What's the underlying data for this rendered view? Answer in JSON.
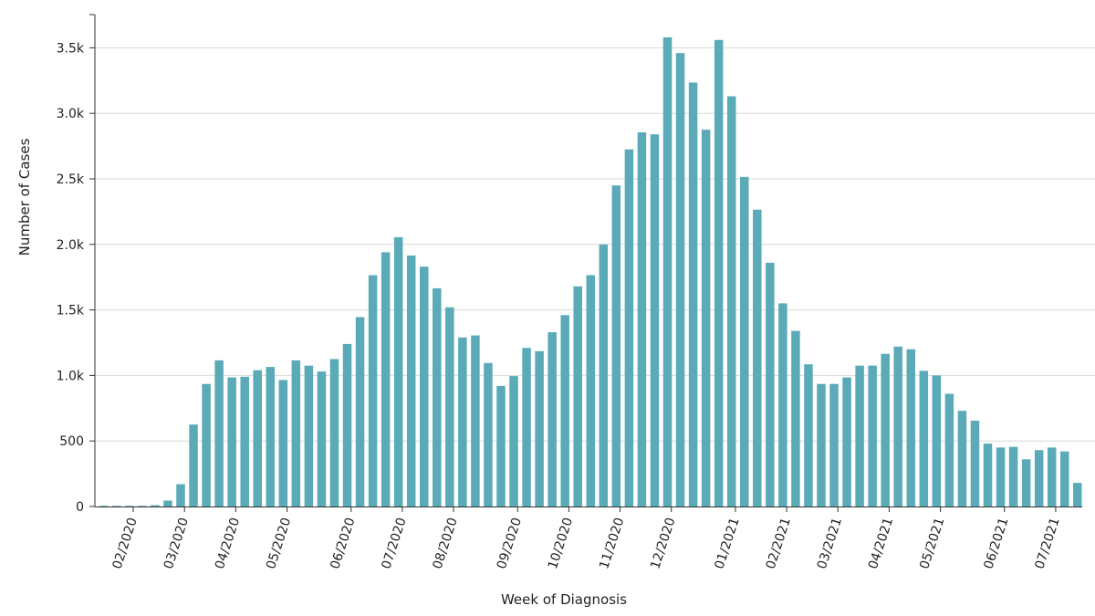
{
  "colors": {
    "bar": "#5aaab8",
    "grid": "#d9d9d9",
    "axis": "#333333",
    "text": "#222222"
  },
  "chart_data": {
    "type": "bar",
    "xlabel": "Week of Diagnosis",
    "ylabel": "Number of Cases",
    "ylim": [
      0,
      3750
    ],
    "grid": true,
    "ytick_values": [
      0,
      500,
      1000,
      1500,
      2000,
      2500,
      3000,
      3500
    ],
    "ytick_labels": [
      "0",
      "500",
      "1.0k",
      "1.5k",
      "2.0k",
      "2.5k",
      "3.0k",
      "3.5k"
    ],
    "xtick_labels": [
      "02/2020",
      "03/2020",
      "04/2020",
      "05/2020",
      "06/2020",
      "07/2020",
      "08/2020",
      "09/2020",
      "10/2020",
      "11/2020",
      "12/2020",
      "01/2021",
      "02/2021",
      "03/2021",
      "04/2021",
      "05/2021",
      "06/2021",
      "07/2021"
    ],
    "xtick_bar_index": [
      2.3,
      6.3,
      10.3,
      14.3,
      19.3,
      23.3,
      27.3,
      32.3,
      36.3,
      40.3,
      44.3,
      49.3,
      53.3,
      57.3,
      61.3,
      65.3,
      70.3,
      74.3
    ],
    "values": [
      5,
      5,
      5,
      5,
      10,
      45,
      170,
      625,
      935,
      1115,
      985,
      990,
      1040,
      1065,
      965,
      1115,
      1075,
      1030,
      1125,
      1240,
      1445,
      1765,
      1940,
      2055,
      1915,
      1830,
      1665,
      1520,
      1290,
      1305,
      1095,
      920,
      995,
      1210,
      1185,
      1330,
      1460,
      1680,
      1765,
      2000,
      2450,
      2725,
      2855,
      2840,
      3580,
      3460,
      3235,
      2875,
      3560,
      3130,
      2515,
      2265,
      1860,
      1550,
      1340,
      1085,
      935,
      935,
      985,
      1075,
      1075,
      1165,
      1220,
      1200,
      1035,
      1000,
      860,
      730,
      655,
      480,
      450,
      455,
      360,
      430,
      450,
      420,
      180
    ]
  }
}
